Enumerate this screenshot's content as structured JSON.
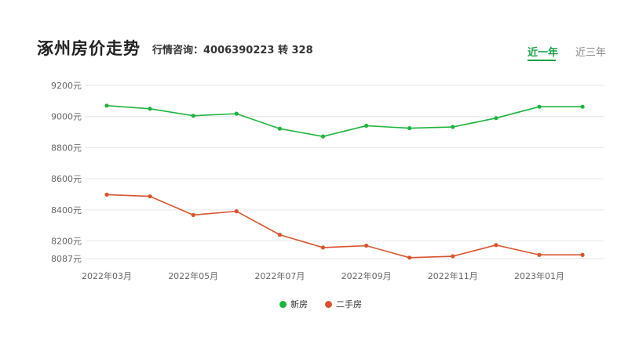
{
  "header": {
    "title": "涿州房价走势",
    "hotline": "行情咨询：4006390223 转 328",
    "tabs": [
      {
        "label": "近一年",
        "active": true
      },
      {
        "label": "近三年",
        "active": false
      }
    ]
  },
  "colors": {
    "new": "#1db43e",
    "second": "#d9542e",
    "active_tab": "#1aa347",
    "grid": "#e6e6e6"
  },
  "chart_data": {
    "type": "line",
    "x": [
      "2022年03月",
      "2022年04月",
      "2022年05月",
      "2022年06月",
      "2022年07月",
      "2022年08月",
      "2022年09月",
      "2022年10月",
      "2022年11月",
      "2022年12月",
      "2023年01月",
      "2023年02月"
    ],
    "x_tick_labels": [
      "2022年03月",
      "2022年05月",
      "2022年07月",
      "2022年09月",
      "2022年11月",
      "2023年01月"
    ],
    "y_ticks": [
      {
        "value": 9200,
        "label": "9200元"
      },
      {
        "value": 9000,
        "label": "9000元"
      },
      {
        "value": 8800,
        "label": "8800元"
      },
      {
        "value": 8600,
        "label": "8600元"
      },
      {
        "value": 8400,
        "label": "8400元"
      },
      {
        "value": 8200,
        "label": "8200元"
      },
      {
        "value": 8087,
        "label": "8087元"
      }
    ],
    "ylim": [
      8087,
      9200
    ],
    "grid": true,
    "legend_position": "bottom-center",
    "series": [
      {
        "name": "新房",
        "key": "new",
        "values": [
          9070,
          9050,
          9005,
          9018,
          8922,
          8872,
          8941,
          8925,
          8933,
          8990,
          9063,
          9063
        ]
      },
      {
        "name": "二手房",
        "key": "second",
        "values": [
          8498,
          8487,
          8367,
          8391,
          8240,
          8158,
          8170,
          8093,
          8102,
          8174,
          8111,
          8111
        ]
      }
    ]
  }
}
